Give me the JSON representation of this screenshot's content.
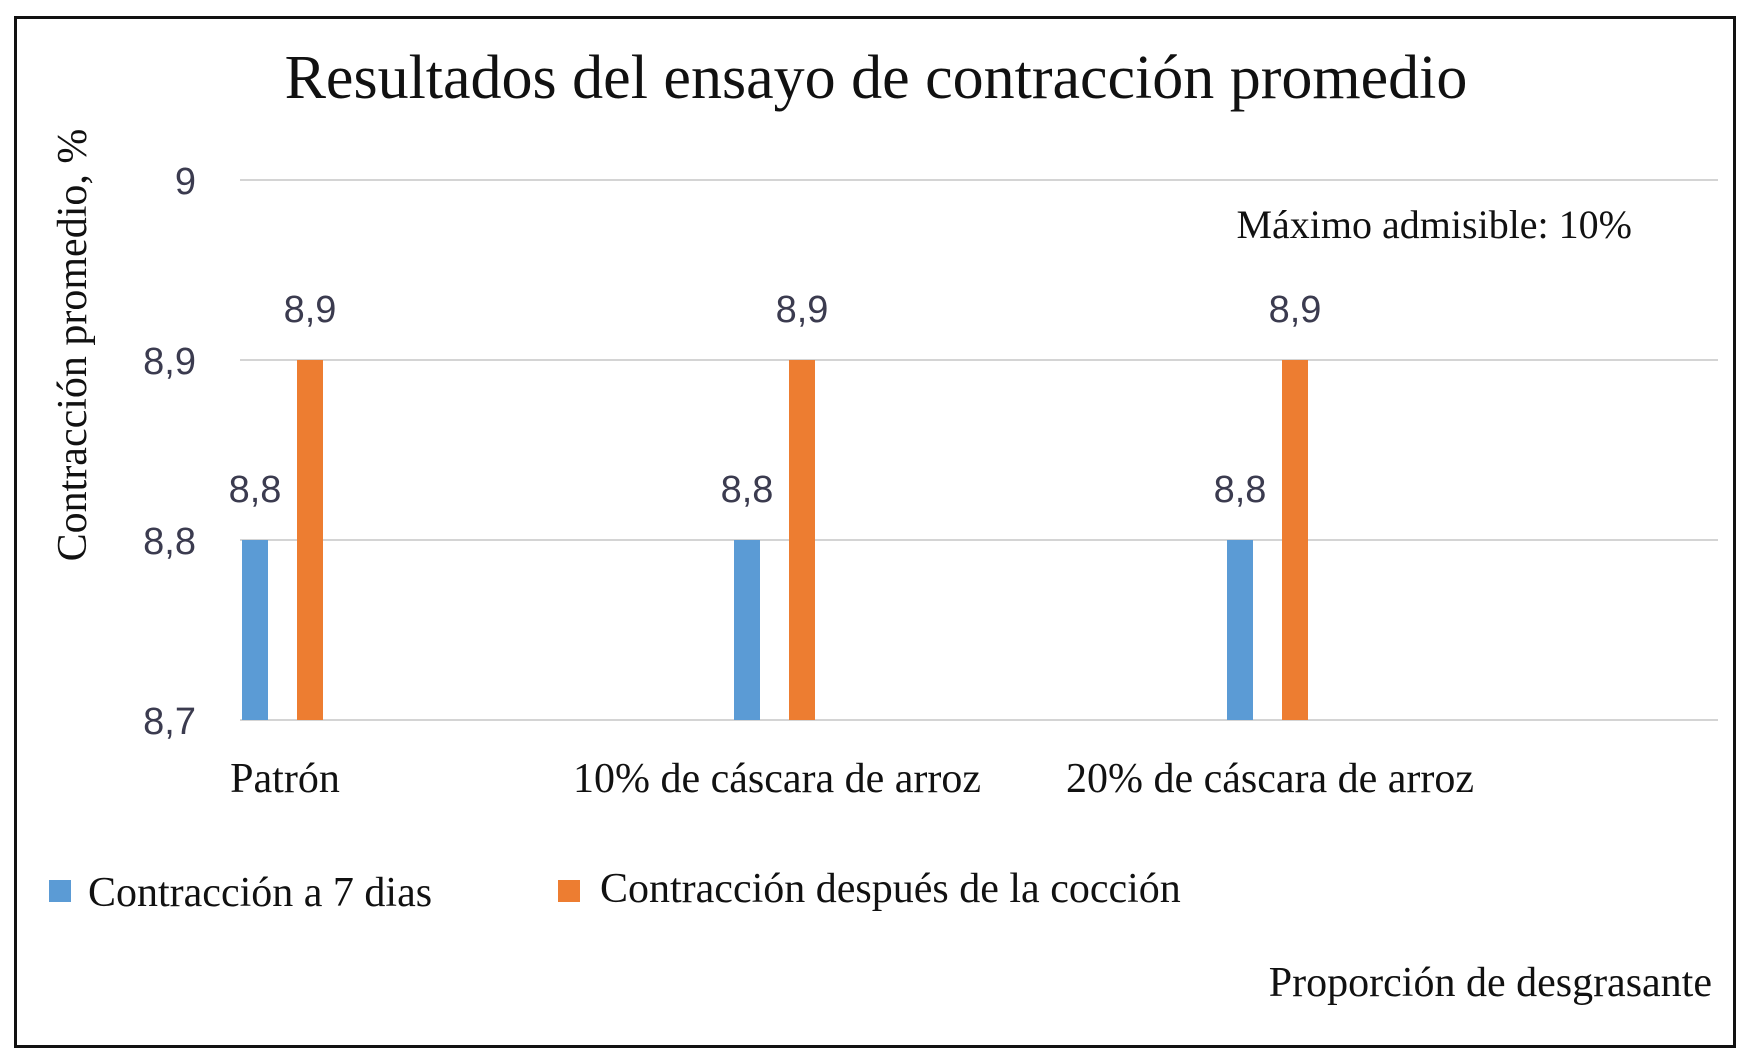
{
  "chart_data": {
    "type": "bar",
    "title": "Resultados del ensayo de contracción promedio",
    "xlabel": "Proporción de desgrasante",
    "ylabel": "Contracción promedio, %",
    "ylim": [
      8.7,
      9.0
    ],
    "yticks": [
      8.7,
      8.8,
      8.9,
      9.0
    ],
    "ytick_labels": [
      "8,7",
      "8,8",
      "8,9",
      "9"
    ],
    "categories": [
      "Patrón",
      "10% de cáscara de arroz",
      "20% de cáscara de arroz"
    ],
    "series": [
      {
        "name": "Contracción a 7 dias",
        "values": [
          8.8,
          8.8,
          8.8
        ],
        "labels": [
          "8,8",
          "8,8",
          "8,8"
        ],
        "color": "#5b9bd5"
      },
      {
        "name": "Contracción después de la cocción",
        "values": [
          8.9,
          8.9,
          8.9
        ],
        "labels": [
          "8,9",
          "8,9",
          "8,9"
        ],
        "color": "#ed7d31"
      }
    ],
    "annotation": "Máximo admisible: 10%",
    "grid": true,
    "legend_position": "bottom-left"
  }
}
